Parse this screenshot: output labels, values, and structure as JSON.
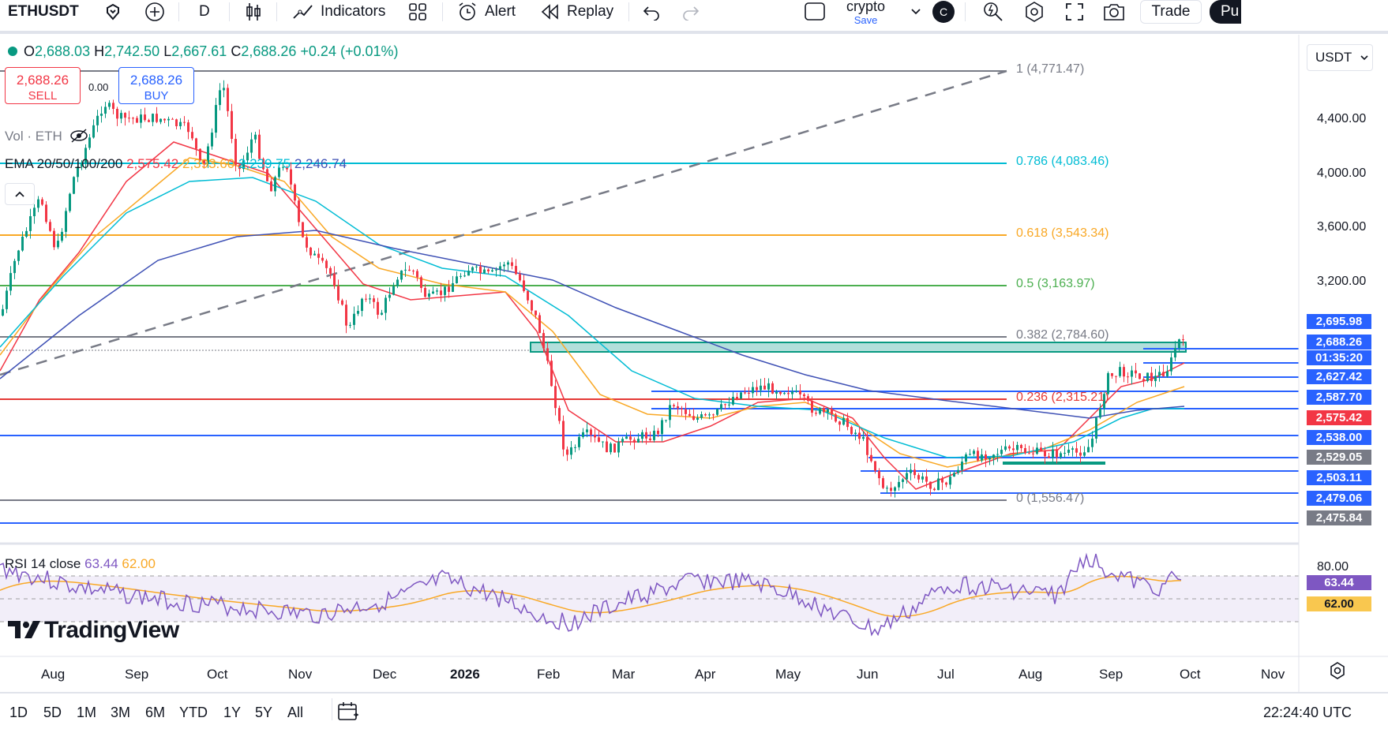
{
  "toolbar": {
    "symbol": "ETHUSDT",
    "interval": "D",
    "indicators": "Indicators",
    "alert": "Alert",
    "replay": "Replay",
    "layout_name": "crypto",
    "layout_save": "Save",
    "avatar": "C",
    "trade": "Trade",
    "publish": "Pu"
  },
  "ohlc": {
    "o_label": "O",
    "o": "2,688.03",
    "h_label": "H",
    "h": "2,742.50",
    "l_label": "L",
    "l": "2,667.61",
    "c_label": "C",
    "c": "2,688.26",
    "chg": "+0.24 (+0.01%)"
  },
  "trade": {
    "sell_price": "2,688.26",
    "sell_label": "SELL",
    "spread": "0.00",
    "buy_price": "2,688.26",
    "buy_label": "BUY"
  },
  "legends": {
    "vol": "Vol · ETH",
    "ema_label": "EMA 20/50/100/200",
    "ema20": "2,575.42",
    "ema50": "2,393.60",
    "ema100": "2,239.75",
    "ema200": "2,246.74",
    "rsi_label": "RSI 14 close",
    "rsi": "63.44",
    "rsi_ma": "62.00"
  },
  "currency": "USDT",
  "fib": [
    {
      "label": "1 (4,771.47)",
      "color": "#787b86"
    },
    {
      "label": "0.786 (4,083.46)",
      "color": "#00bcd4"
    },
    {
      "label": "0.618 (3,543.34)",
      "color": "#f9a825"
    },
    {
      "label": "0.5 (3,163.97)",
      "color": "#4caf50"
    },
    {
      "label": "0.382 (2,784.60)",
      "color": "#787b86"
    },
    {
      "label": "0.236 (2,315.21)",
      "color": "#e53935"
    },
    {
      "label": "0 (1,556.47)",
      "color": "#787b86"
    }
  ],
  "axis_ticks": [
    "4,400.00",
    "4,000.00",
    "3,600.00",
    "3,200.00"
  ],
  "price_labels": [
    {
      "text": "2,695.98",
      "color": "#2962ff"
    },
    {
      "text": "2,688.26",
      "color": "#2962ff"
    },
    {
      "text": "01:35:20",
      "color": "#2962ff"
    },
    {
      "text": "2,627.42",
      "color": "#2962ff"
    },
    {
      "text": "2,587.70",
      "color": "#2962ff"
    },
    {
      "text": "2,575.42",
      "color": "#f23645"
    },
    {
      "text": "2,538.00",
      "color": "#2962ff"
    },
    {
      "text": "2,529.05",
      "color": "#787b86"
    },
    {
      "text": "2,503.11",
      "color": "#2962ff"
    },
    {
      "text": "2,479.06",
      "color": "#2962ff"
    },
    {
      "text": "2,475.84",
      "color": "#787b86"
    }
  ],
  "rsi_axis": {
    "top": "80.00",
    "rsi": "63.44",
    "ma": "62.00"
  },
  "months": [
    "Aug",
    "Sep",
    "Oct",
    "Nov",
    "Dec",
    "2026",
    "Feb",
    "Mar",
    "Apr",
    "May",
    "Jun",
    "Jul",
    "Aug",
    "Sep",
    "Oct",
    "Nov"
  ],
  "ranges": [
    "1D",
    "5D",
    "1M",
    "3M",
    "6M",
    "YTD",
    "1Y",
    "5Y",
    "All"
  ],
  "clock": "22:24:40 UTC",
  "logo": "TradingView",
  "colors": {
    "up": "#089981",
    "down": "#f23645",
    "accent": "#2962ff",
    "ema20": "#f23645",
    "ema50": "#f9a825",
    "ema100": "#00bcd4",
    "ema200": "#3f51b5",
    "rsi": "#7e57c2"
  }
}
